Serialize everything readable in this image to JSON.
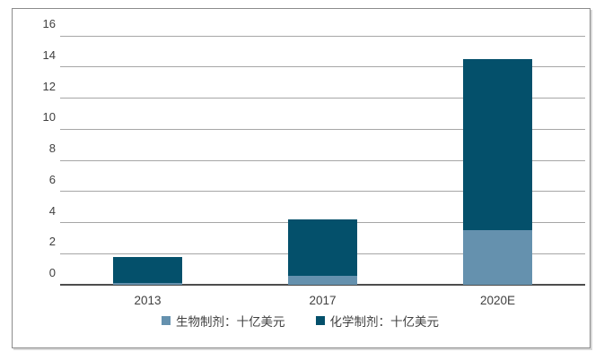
{
  "chart_data": {
    "type": "bar",
    "stacked": true,
    "categories": [
      "2013",
      "2017",
      "2020E"
    ],
    "series": [
      {
        "name": "生物制剂：十亿美元",
        "color": "#6591AE",
        "values": [
          0.1,
          0.6,
          3.5
        ]
      },
      {
        "name": "化学制剂：十亿美元",
        "color": "#04506B",
        "values": [
          1.7,
          3.6,
          11.0
        ]
      }
    ],
    "title": "",
    "xlabel": "",
    "ylabel": "",
    "ylim": [
      0,
      16
    ],
    "ytick_step": 2,
    "ytick_labels": [
      "0",
      "2",
      "4",
      "6",
      "8",
      "10",
      "12",
      "14",
      "16"
    ],
    "grid": true,
    "legend_position": "bottom",
    "colors": {
      "gridline": "#a6a6a6",
      "axis_line": "#4d4d4d",
      "text": "#404040",
      "frame_border": "#8c8c8c",
      "background": "#ffffff"
    }
  }
}
